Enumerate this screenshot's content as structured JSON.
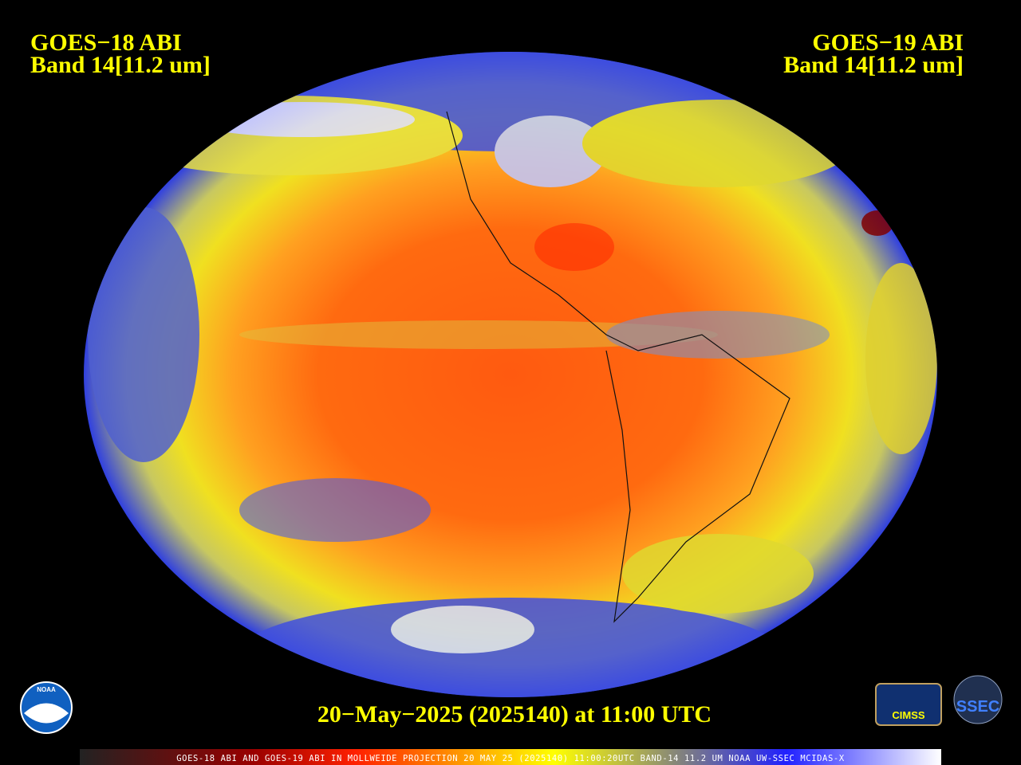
{
  "header": {
    "left": {
      "line1": "GOES−18 ABI",
      "line2": "Band 14[11.2 um]"
    },
    "right": {
      "line1": "GOES−19 ABI",
      "line2": "Band 14[11.2 um]"
    }
  },
  "timestamp": "20−May−2025 (2025140) at 11:00 UTC",
  "footer": "GOES-18 ABI AND GOES-19 ABI IN MOLLWEIDE PROJECTION 20 MAY 25 (2025140) 11:00:20UTC BAND-14 11.2 UM NOAA UW-SSEC MCIDAS-X",
  "logos": {
    "noaa": "NOAA",
    "cimss": "CIMSS",
    "ssec": "SSEC"
  }
}
